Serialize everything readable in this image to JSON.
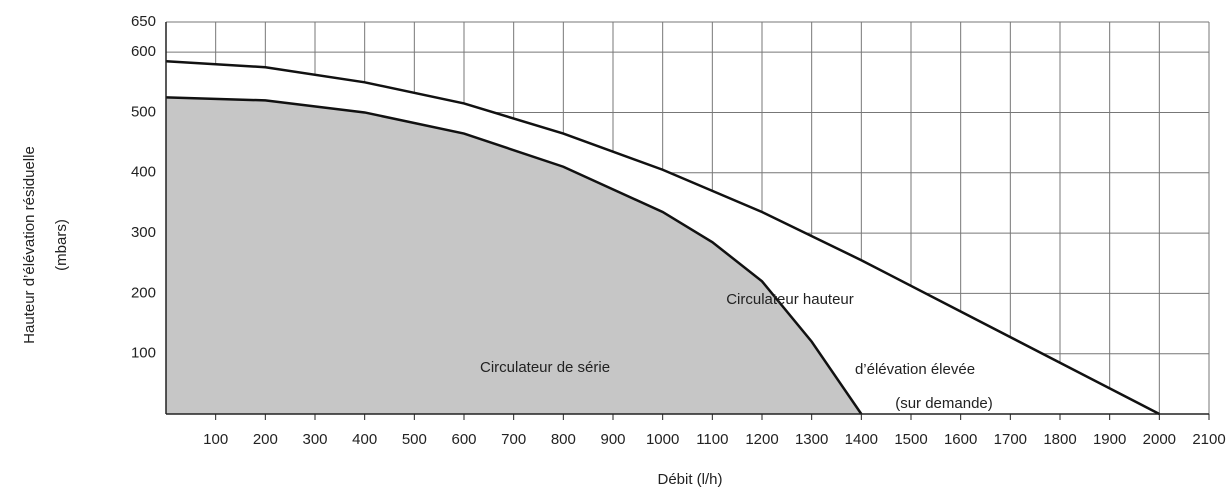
{
  "chart_data": {
    "type": "area",
    "y_label_lines": [
      "Hauteur d’élévation résiduelle",
      "(mbars)"
    ],
    "x_label": "Débit (l/h)",
    "xlim": [
      0,
      2100
    ],
    "ylim": [
      0,
      650
    ],
    "xticks": [
      100,
      200,
      300,
      400,
      500,
      600,
      700,
      800,
      900,
      1000,
      1100,
      1200,
      1300,
      1400,
      1500,
      1600,
      1700,
      1800,
      1900,
      2000,
      2100
    ],
    "yticks": [
      100,
      200,
      300,
      400,
      500,
      600,
      650
    ],
    "grid": true,
    "series": [
      {
        "name_lines": [
          "Circulateur hauteur",
          "d’élévation élevée",
          "(sur demande)"
        ],
        "color": "#ffffff",
        "x": [
          0,
          200,
          400,
          600,
          800,
          1000,
          1200,
          1400,
          1600,
          1800,
          2000
        ],
        "values": [
          585,
          575,
          550,
          515,
          465,
          405,
          335,
          255,
          170,
          85,
          0
        ]
      },
      {
        "name_lines": [
          "Circulateur de série"
        ],
        "color": "#c6c6c6",
        "x": [
          0,
          200,
          400,
          600,
          800,
          1000,
          1100,
          1200,
          1300,
          1400
        ],
        "values": [
          525,
          520,
          500,
          465,
          410,
          335,
          285,
          220,
          120,
          0
        ]
      }
    ]
  }
}
